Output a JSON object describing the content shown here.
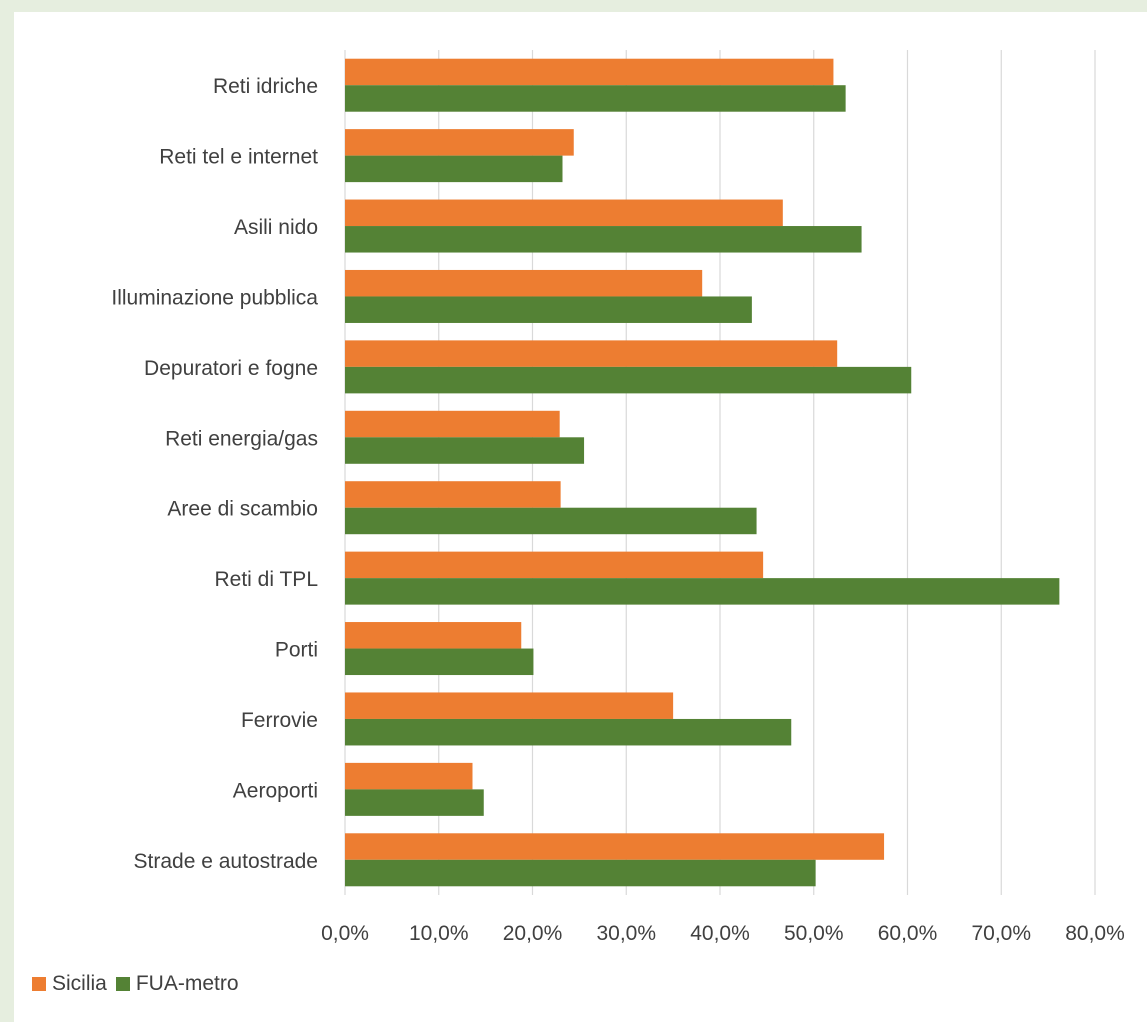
{
  "chart_data": {
    "type": "bar",
    "orientation": "horizontal",
    "categories": [
      "Reti idriche",
      "Reti tel e internet",
      "Asili nido",
      "Illuminazione pubblica",
      "Depuratori e fogne",
      "Reti energia/gas",
      "Aree di scambio",
      "Reti di TPL",
      "Porti",
      "Ferrovie",
      "Aeroporti",
      "Strade e autostrade"
    ],
    "series": [
      {
        "name": "Sicilia",
        "color": "#ed7d31",
        "values": [
          52.1,
          24.4,
          46.7,
          38.1,
          52.5,
          22.9,
          23.0,
          44.6,
          18.8,
          35.0,
          13.6,
          57.5
        ]
      },
      {
        "name": "FUA-metro",
        "color": "#548235",
        "values": [
          53.4,
          23.2,
          55.1,
          43.4,
          60.4,
          25.5,
          43.9,
          76.2,
          20.1,
          47.6,
          14.8,
          50.2
        ]
      }
    ],
    "xticks": [
      "0,0%",
      "10,0%",
      "20,0%",
      "30,0%",
      "40,0%",
      "50,0%",
      "60,0%",
      "70,0%",
      "80,0%"
    ],
    "xlim": [
      0,
      80
    ],
    "grid": "vertical",
    "legend": "bottom-left"
  }
}
